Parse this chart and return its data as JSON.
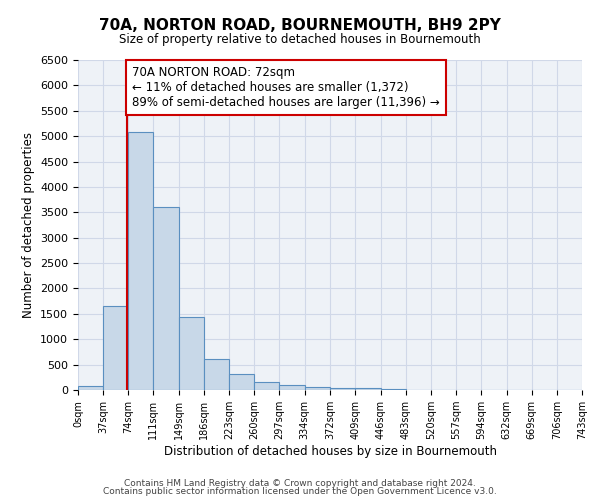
{
  "title": "70A, NORTON ROAD, BOURNEMOUTH, BH9 2PY",
  "subtitle": "Size of property relative to detached houses in Bournemouth",
  "xlabel": "Distribution of detached houses by size in Bournemouth",
  "ylabel": "Number of detached properties",
  "bar_edges": [
    0,
    37,
    74,
    111,
    149,
    186,
    223,
    260,
    297,
    334,
    372,
    409,
    446,
    483,
    520,
    557,
    594,
    632,
    669,
    706,
    743
  ],
  "bar_heights": [
    70,
    1650,
    5080,
    3600,
    1430,
    620,
    310,
    150,
    100,
    60,
    40,
    30,
    15,
    5,
    5,
    5,
    3,
    3,
    3,
    2
  ],
  "bar_color": "#c8d8e8",
  "bar_edge_color": "#5a8fc0",
  "property_line_x": 72,
  "property_line_color": "#cc0000",
  "annotation_box_color": "#ffffff",
  "annotation_box_edge_color": "#cc0000",
  "annotation_title": "70A NORTON ROAD: 72sqm",
  "annotation_line1": "← 11% of detached houses are smaller (1,372)",
  "annotation_line2": "89% of semi-detached houses are larger (11,396) →",
  "annotation_fontsize": 8.5,
  "ylim": [
    0,
    6500
  ],
  "xlim": [
    0,
    743
  ],
  "yticks": [
    0,
    500,
    1000,
    1500,
    2000,
    2500,
    3000,
    3500,
    4000,
    4500,
    5000,
    5500,
    6000,
    6500
  ],
  "xtick_labels": [
    "0sqm",
    "37sqm",
    "74sqm",
    "111sqm",
    "149sqm",
    "186sqm",
    "223sqm",
    "260sqm",
    "297sqm",
    "334sqm",
    "372sqm",
    "409sqm",
    "446sqm",
    "483sqm",
    "520sqm",
    "557sqm",
    "594sqm",
    "632sqm",
    "669sqm",
    "706sqm",
    "743sqm"
  ],
  "xtick_positions": [
    0,
    37,
    74,
    111,
    149,
    186,
    223,
    260,
    297,
    334,
    372,
    409,
    446,
    483,
    520,
    557,
    594,
    632,
    669,
    706,
    743
  ],
  "grid_color": "#d0d8e8",
  "background_color": "#eef2f7",
  "footer_line1": "Contains HM Land Registry data © Crown copyright and database right 2024.",
  "footer_line2": "Contains public sector information licensed under the Open Government Licence v3.0."
}
